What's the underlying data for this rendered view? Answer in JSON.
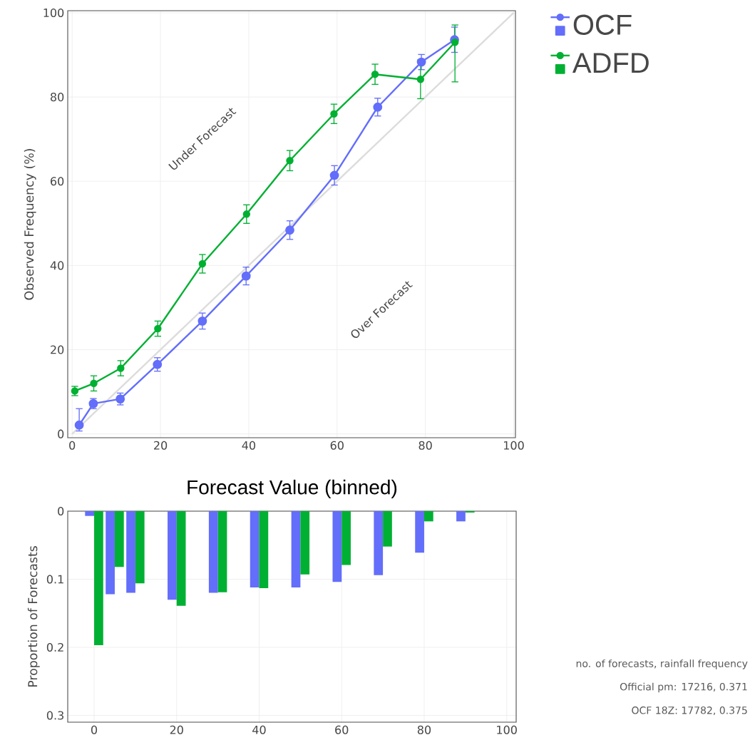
{
  "chart_data": [
    {
      "type": "line",
      "ylabel": "Observed Frequency (%)",
      "xlim": [
        -1,
        100.4
      ],
      "ylim": [
        -0.9,
        100.5
      ],
      "xticks": [
        0,
        20,
        40,
        60,
        80,
        100
      ],
      "yticks": [
        0,
        20,
        40,
        60,
        80,
        100
      ],
      "grid": true,
      "legend": "top right",
      "marker": "circle",
      "series": [
        {
          "color": "#dcdcdc",
          "marker": "none",
          "x": [
            0,
            100
          ],
          "values": [
            0,
            100
          ]
        },
        {
          "name": "OCF",
          "color": "#636efa",
          "x": [
            1.6,
            4.8,
            10.9,
            19.3,
            29.5,
            39.4,
            49.3,
            59.4,
            69.2,
            79.1,
            86.6
          ],
          "values": [
            2.1,
            7.2,
            8.3,
            16.5,
            26.8,
            37.5,
            48.4,
            61.4,
            77.6,
            88.3,
            93.6
          ],
          "errors": [
            [
              0.7,
              6.0
            ],
            1.2,
            1.4,
            1.6,
            1.9,
            2.1,
            2.2,
            2.3,
            2.1,
            1.8,
            3.0
          ]
        },
        {
          "name": "ADFD",
          "color": "#00b032",
          "x": [
            0.6,
            4.9,
            11.0,
            19.4,
            29.5,
            39.5,
            49.3,
            59.3,
            68.6,
            78.9,
            86.7
          ],
          "values": [
            10.2,
            12.0,
            15.6,
            25.0,
            40.4,
            52.2,
            64.9,
            76.0,
            85.4,
            84.2,
            93.0
          ],
          "errors": [
            1.1,
            1.8,
            1.8,
            1.8,
            2.2,
            2.2,
            2.4,
            2.3,
            2.4,
            4.6,
            [
              83.6,
              97.1
            ]
          ]
        }
      ],
      "annotations": [
        "Under Forecast",
        "Over Forecast"
      ]
    },
    {
      "type": "bar",
      "title": "Forecast Value (binned)",
      "ylabel": "Proportion of Forecasts",
      "xlim": [
        -6.4,
        102.3
      ],
      "ylim": [
        0.31,
        0
      ],
      "xticks": [
        0,
        20,
        40,
        60,
        80,
        100
      ],
      "yticks": [
        0,
        0.1,
        0.2,
        0.3
      ],
      "grid": true,
      "x": [
        0,
        5,
        10,
        20,
        30,
        40,
        50,
        60,
        70,
        80,
        90
      ],
      "series": [
        {
          "color": "#636efa",
          "values": [
            0.007,
            0.122,
            0.12,
            0.13,
            0.12,
            0.112,
            0.112,
            0.104,
            0.094,
            0.061,
            0.015
          ]
        },
        {
          "color": "#00b032",
          "values": [
            0.197,
            0.082,
            0.106,
            0.139,
            0.119,
            0.113,
            0.093,
            0.079,
            0.052,
            0.015,
            0.002
          ]
        }
      ],
      "annotations": [
        "no. of forecasts, rainfall frequency",
        "Official pm: 17216, 0.371",
        "OCF 18Z: 17782, 0.375"
      ]
    }
  ]
}
